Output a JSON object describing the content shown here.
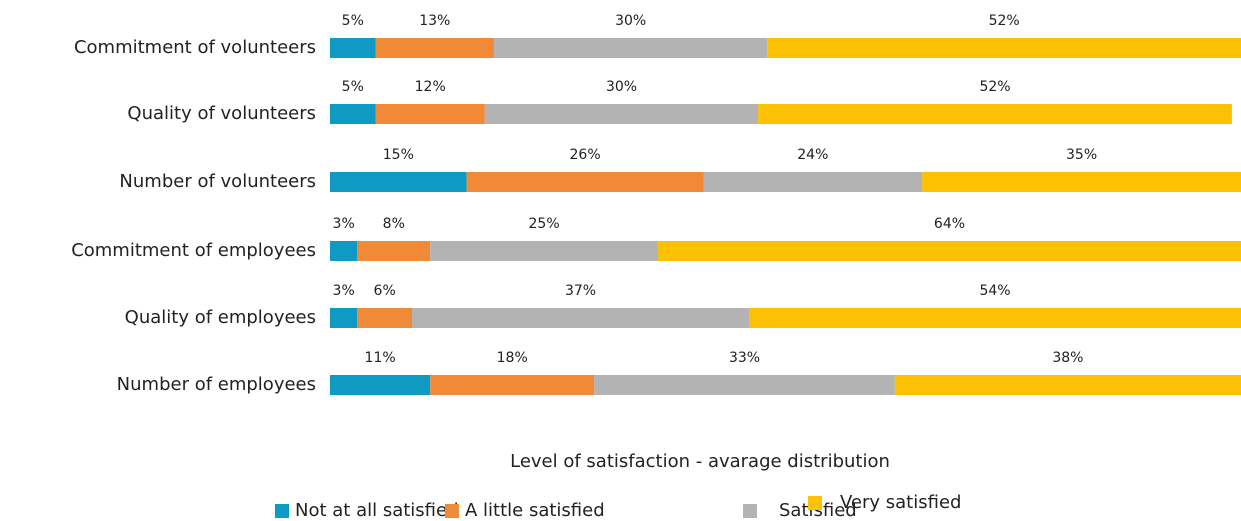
{
  "chart_data": {
    "type": "stacked-bar-horizontal",
    "categories": [
      "Commitment of volunteers",
      "Quality of volunteers",
      "Number of volunteers",
      "Commitment of employees",
      "Quality of employees",
      "Number of employees"
    ],
    "series": [
      {
        "name": "Not at all satisfied",
        "color": "#0f9ac3",
        "values": [
          5,
          5,
          15,
          3,
          3,
          11
        ],
        "value_labels": [
          "5%",
          "5%",
          "15%",
          "3%",
          "3%",
          "11%"
        ]
      },
      {
        "name": "A little satisfied",
        "color": "#f08a36",
        "values": [
          13,
          12,
          26,
          8,
          6,
          18
        ],
        "value_labels": [
          "13%",
          "12%",
          "26%",
          "8%",
          "6%",
          "18%"
        ]
      },
      {
        "name": "Satisfied",
        "color": "#b3b3b3",
        "values": [
          30,
          30,
          24,
          25,
          37,
          33
        ],
        "value_labels": [
          "30%",
          "30%",
          "24%",
          "25%",
          "37%",
          "33%"
        ]
      },
      {
        "name": "Very satisfied",
        "color": "#fbc102",
        "values": [
          52,
          52,
          35,
          64,
          54,
          38
        ],
        "value_labels": [
          "52%",
          "52%",
          "35%",
          "64%",
          "54%",
          "38%"
        ]
      }
    ],
    "xlim": [
      0,
      100
    ],
    "xlabel": "Level of satisfaction - avarage distribution",
    "legend": "bottom"
  }
}
